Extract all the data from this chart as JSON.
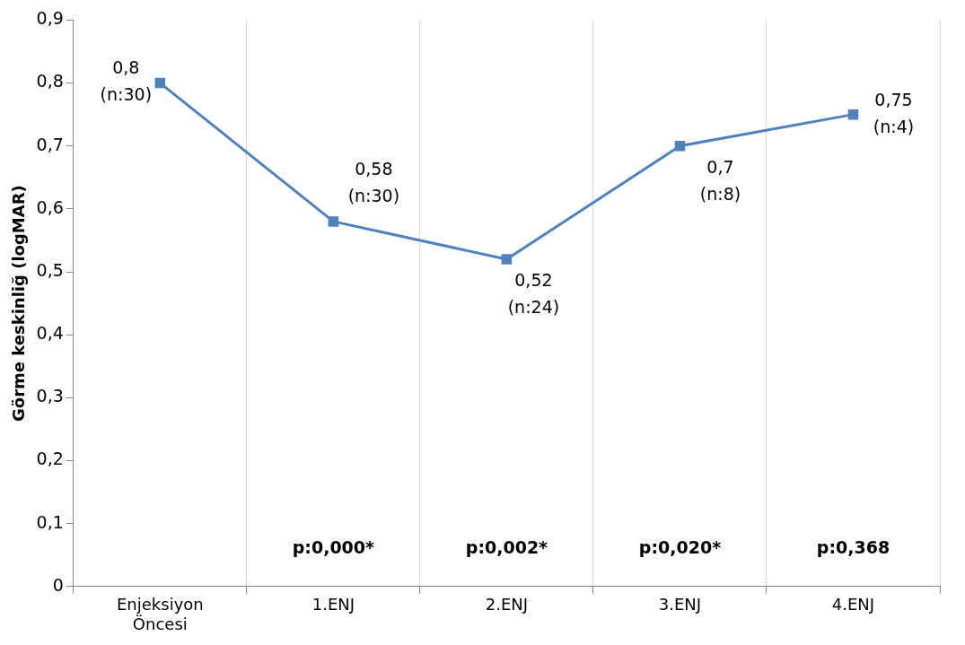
{
  "chart_data": {
    "type": "line",
    "ylabel": "Görme keskinliğ (logMAR)",
    "categories": [
      "Enjeksiyon Öncesi",
      "1.ENJ",
      "2.ENJ",
      "3.ENJ",
      "4.ENJ"
    ],
    "series": [
      {
        "color": "#4f81bd",
        "values": [
          0.8,
          0.58,
          0.52,
          0.7,
          0.75
        ],
        "value_labels": [
          "0,8\n(n:30)",
          "0,58\n(n:30)",
          "0,52\n(n:24)",
          "0,7\n(n:8)",
          "0,75\n(n:4)"
        ]
      }
    ],
    "ylim": [
      0,
      0.9
    ],
    "yticks": [
      0,
      {
        "value": 0.1,
        "label": "0,1"
      },
      {
        "value": 0.2,
        "label": "0,2"
      },
      {
        "value": 0.3,
        "label": "0,3"
      },
      {
        "value": 0.4,
        "label": "0,4"
      },
      {
        "value": 0.5,
        "label": "0,5"
      },
      {
        "value": 0.6,
        "label": "0,6"
      },
      {
        "value": 0.7,
        "label": "0,7"
      },
      {
        "value": 0.8,
        "label": "0,8"
      },
      {
        "value": 0.9,
        "label": "0,9"
      }
    ],
    "annotations": [
      "p:0,000*",
      "p:0,002*",
      "p:0,020*",
      "p:0,368"
    ],
    "grid": "x",
    "legend": false,
    "marker": "square",
    "line_style": "solid"
  }
}
